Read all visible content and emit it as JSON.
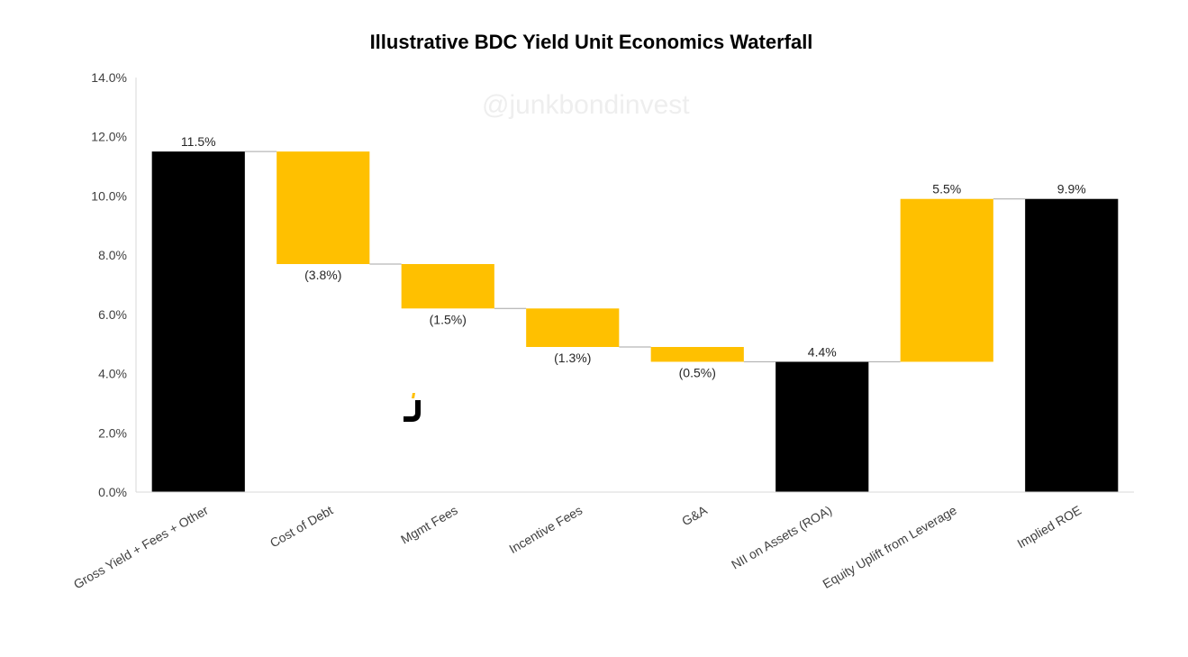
{
  "chart_data": {
    "type": "bar",
    "subtype": "waterfall",
    "title": "Illustrative BDC Yield Unit Economics Waterfall",
    "watermark": "@junkbondinvest",
    "logo": "junkbondinvest-j-logo",
    "ylim": [
      0,
      14
    ],
    "yticks": [
      "0.0%",
      "2.0%",
      "4.0%",
      "6.0%",
      "8.0%",
      "10.0%",
      "12.0%",
      "14.0%"
    ],
    "grid": false,
    "legend": "none",
    "colors": {
      "total": "#000000",
      "delta": "#FFC000",
      "connector": "#A6A6A6",
      "axis": "#D9D9D9"
    },
    "categories": [
      "Gross Yield + Fees + Other",
      "Cost of Debt",
      "Mgmt Fees",
      "Incentive Fees",
      "G&A",
      "NII on Assets (ROA)",
      "Equity Uplift from Leverage",
      "Implied ROE"
    ],
    "bars": [
      {
        "kind": "total",
        "start": 0,
        "end": 11.5,
        "label": "11.5%"
      },
      {
        "kind": "delta",
        "start": 11.5,
        "end": 7.7,
        "label": "(3.8%)"
      },
      {
        "kind": "delta",
        "start": 7.7,
        "end": 6.2,
        "label": "(1.5%)"
      },
      {
        "kind": "delta",
        "start": 6.2,
        "end": 4.9,
        "label": "(1.3%)"
      },
      {
        "kind": "delta",
        "start": 4.9,
        "end": 4.4,
        "label": "(0.5%)"
      },
      {
        "kind": "total",
        "start": 0,
        "end": 4.4,
        "label": "4.4%"
      },
      {
        "kind": "delta",
        "start": 4.4,
        "end": 9.9,
        "label": "5.5%"
      },
      {
        "kind": "total",
        "start": 0,
        "end": 9.9,
        "label": "9.9%"
      }
    ]
  }
}
